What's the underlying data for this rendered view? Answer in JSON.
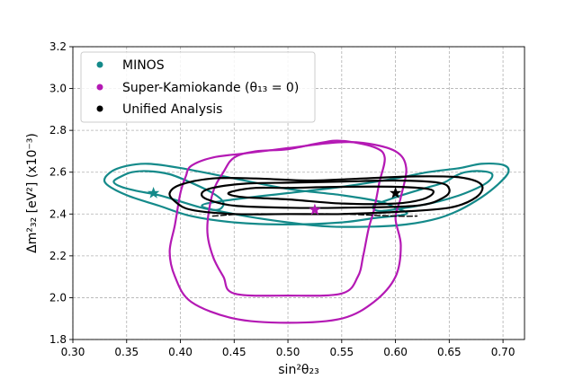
{
  "chart_data": {
    "type": "line",
    "xlabel": "sin²θ₂₃",
    "ylabel": "Δm²₃₂ [eV²] (x10⁻³)",
    "xlim": [
      0.3,
      0.72
    ],
    "ylim": [
      1.8,
      3.2
    ],
    "x_ticks": [
      "0.30",
      "0.35",
      "0.40",
      "0.45",
      "0.50",
      "0.55",
      "0.60",
      "0.65",
      "0.70"
    ],
    "y_ticks": [
      "1.8",
      "2.0",
      "2.2",
      "2.4",
      "2.6",
      "2.8",
      "3.0",
      "3.2"
    ],
    "grid": true,
    "legend_position": "top-left",
    "legend": [
      {
        "label": "MINOS",
        "color": "#148a8a"
      },
      {
        "label": "Super-Kamiokande (θ₁₃ = 0)",
        "color": "#b419b4"
      },
      {
        "label": "Unified Analysis",
        "color": "#000000"
      }
    ],
    "series": [
      {
        "name": "MINOS",
        "color": "#148a8a",
        "best_fit": [
          0.375,
          2.5
        ],
        "contours": [
          {
            "closed": true,
            "points": [
              [
                0.345,
                2.58
              ],
              [
                0.355,
                2.6
              ],
              [
                0.37,
                2.605
              ],
              [
                0.39,
                2.59
              ],
              [
                0.41,
                2.55
              ],
              [
                0.43,
                2.5
              ],
              [
                0.44,
                2.455
              ],
              [
                0.435,
                2.42
              ],
              [
                0.42,
                2.43
              ],
              [
                0.4,
                2.46
              ],
              [
                0.38,
                2.49
              ],
              [
                0.36,
                2.51
              ],
              [
                0.345,
                2.53
              ],
              [
                0.338,
                2.555
              ]
            ]
          },
          {
            "closed": true,
            "points": [
              [
                0.335,
                2.6
              ],
              [
                0.35,
                2.63
              ],
              [
                0.37,
                2.64
              ],
              [
                0.4,
                2.62
              ],
              [
                0.45,
                2.57
              ],
              [
                0.5,
                2.52
              ],
              [
                0.55,
                2.49
              ],
              [
                0.585,
                2.46
              ],
              [
                0.6,
                2.43
              ],
              [
                0.61,
                2.4
              ],
              [
                0.58,
                2.38
              ],
              [
                0.55,
                2.36
              ],
              [
                0.5,
                2.35
              ],
              [
                0.45,
                2.36
              ],
              [
                0.41,
                2.39
              ],
              [
                0.38,
                2.44
              ],
              [
                0.35,
                2.49
              ],
              [
                0.33,
                2.55
              ]
            ]
          },
          {
            "closed": true,
            "points": [
              [
                0.655,
                2.58
              ],
              [
                0.665,
                2.6
              ],
              [
                0.68,
                2.605
              ],
              [
                0.69,
                2.59
              ],
              [
                0.685,
                2.55
              ],
              [
                0.665,
                2.5
              ],
              [
                0.64,
                2.46
              ],
              [
                0.61,
                2.43
              ],
              [
                0.585,
                2.415
              ],
              [
                0.58,
                2.44
              ],
              [
                0.6,
                2.48
              ],
              [
                0.625,
                2.52
              ],
              [
                0.645,
                2.55
              ]
            ]
          },
          {
            "closed": true,
            "points": [
              [
                0.66,
                2.62
              ],
              [
                0.68,
                2.64
              ],
              [
                0.7,
                2.635
              ],
              [
                0.705,
                2.6
              ],
              [
                0.695,
                2.54
              ],
              [
                0.68,
                2.48
              ],
              [
                0.66,
                2.42
              ],
              [
                0.64,
                2.38
              ],
              [
                0.61,
                2.35
              ],
              [
                0.58,
                2.34
              ],
              [
                0.54,
                2.34
              ],
              [
                0.5,
                2.36
              ],
              [
                0.45,
                2.4
              ],
              [
                0.42,
                2.44
              ],
              [
                0.45,
                2.47
              ],
              [
                0.5,
                2.5
              ],
              [
                0.55,
                2.53
              ],
              [
                0.6,
                2.57
              ],
              [
                0.63,
                2.6
              ]
            ]
          }
        ]
      },
      {
        "name": "Super-Kamiokande (θ₁₃ = 0)",
        "color": "#b419b4",
        "best_fit": [
          0.525,
          2.42
        ],
        "contours": [
          {
            "closed": true,
            "points": [
              [
                0.45,
                2.67
              ],
              [
                0.47,
                2.7
              ],
              [
                0.5,
                2.71
              ],
              [
                0.53,
                2.74
              ],
              [
                0.55,
                2.75
              ],
              [
                0.58,
                2.72
              ],
              [
                0.59,
                2.67
              ],
              [
                0.585,
                2.55
              ],
              [
                0.58,
                2.42
              ],
              [
                0.575,
                2.33
              ],
              [
                0.57,
                2.2
              ],
              [
                0.565,
                2.1
              ],
              [
                0.55,
                2.02
              ],
              [
                0.5,
                2.01
              ],
              [
                0.45,
                2.02
              ],
              [
                0.44,
                2.1
              ],
              [
                0.43,
                2.2
              ],
              [
                0.425,
                2.33
              ],
              [
                0.43,
                2.5
              ],
              [
                0.44,
                2.6
              ]
            ]
          },
          {
            "closed": true,
            "points": [
              [
                0.41,
                2.63
              ],
              [
                0.43,
                2.67
              ],
              [
                0.46,
                2.69
              ],
              [
                0.5,
                2.715
              ],
              [
                0.54,
                2.74
              ],
              [
                0.57,
                2.74
              ],
              [
                0.6,
                2.7
              ],
              [
                0.61,
                2.62
              ],
              [
                0.605,
                2.48
              ],
              [
                0.6,
                2.38
              ],
              [
                0.605,
                2.25
              ],
              [
                0.6,
                2.1
              ],
              [
                0.58,
                1.98
              ],
              [
                0.55,
                1.9
              ],
              [
                0.5,
                1.88
              ],
              [
                0.45,
                1.9
              ],
              [
                0.41,
                1.98
              ],
              [
                0.395,
                2.1
              ],
              [
                0.39,
                2.22
              ],
              [
                0.395,
                2.35
              ],
              [
                0.4,
                2.5
              ],
              [
                0.405,
                2.58
              ]
            ]
          }
        ]
      },
      {
        "name": "Unified Analysis",
        "color": "#000000",
        "best_fit": [
          0.6,
          2.5
        ],
        "contours": [
          {
            "closed": true,
            "points": [
              [
                0.45,
                2.51
              ],
              [
                0.47,
                2.525
              ],
              [
                0.5,
                2.525
              ],
              [
                0.55,
                2.53
              ],
              [
                0.6,
                2.53
              ],
              [
                0.63,
                2.52
              ],
              [
                0.635,
                2.5
              ],
              [
                0.625,
                2.47
              ],
              [
                0.6,
                2.45
              ],
              [
                0.55,
                2.45
              ],
              [
                0.5,
                2.47
              ],
              [
                0.46,
                2.48
              ],
              [
                0.445,
                2.495
              ]
            ]
          },
          {
            "closed": true,
            "points": [
              [
                0.43,
                2.525
              ],
              [
                0.46,
                2.545
              ],
              [
                0.5,
                2.55
              ],
              [
                0.55,
                2.555
              ],
              [
                0.6,
                2.56
              ],
              [
                0.64,
                2.55
              ],
              [
                0.65,
                2.52
              ],
              [
                0.645,
                2.48
              ],
              [
                0.62,
                2.44
              ],
              [
                0.55,
                2.43
              ],
              [
                0.5,
                2.43
              ],
              [
                0.45,
                2.44
              ],
              [
                0.425,
                2.47
              ],
              [
                0.42,
                2.5
              ]
            ]
          },
          {
            "closed": true,
            "points": [
              [
                0.4,
                2.54
              ],
              [
                0.43,
                2.57
              ],
              [
                0.47,
                2.57
              ],
              [
                0.52,
                2.56
              ],
              [
                0.57,
                2.57
              ],
              [
                0.62,
                2.58
              ],
              [
                0.66,
                2.575
              ],
              [
                0.68,
                2.54
              ],
              [
                0.675,
                2.48
              ],
              [
                0.65,
                2.43
              ],
              [
                0.6,
                2.41
              ],
              [
                0.55,
                2.4
              ],
              [
                0.5,
                2.4
              ],
              [
                0.45,
                2.4
              ],
              [
                0.41,
                2.42
              ],
              [
                0.395,
                2.46
              ],
              [
                0.39,
                2.5
              ]
            ]
          }
        ],
        "dashed": [
          [
            0.43,
            2.39
          ],
          [
            0.46,
            2.4
          ],
          [
            0.5,
            2.4
          ],
          [
            0.55,
            2.4
          ],
          [
            0.6,
            2.39
          ],
          [
            0.62,
            2.39
          ]
        ]
      }
    ]
  }
}
